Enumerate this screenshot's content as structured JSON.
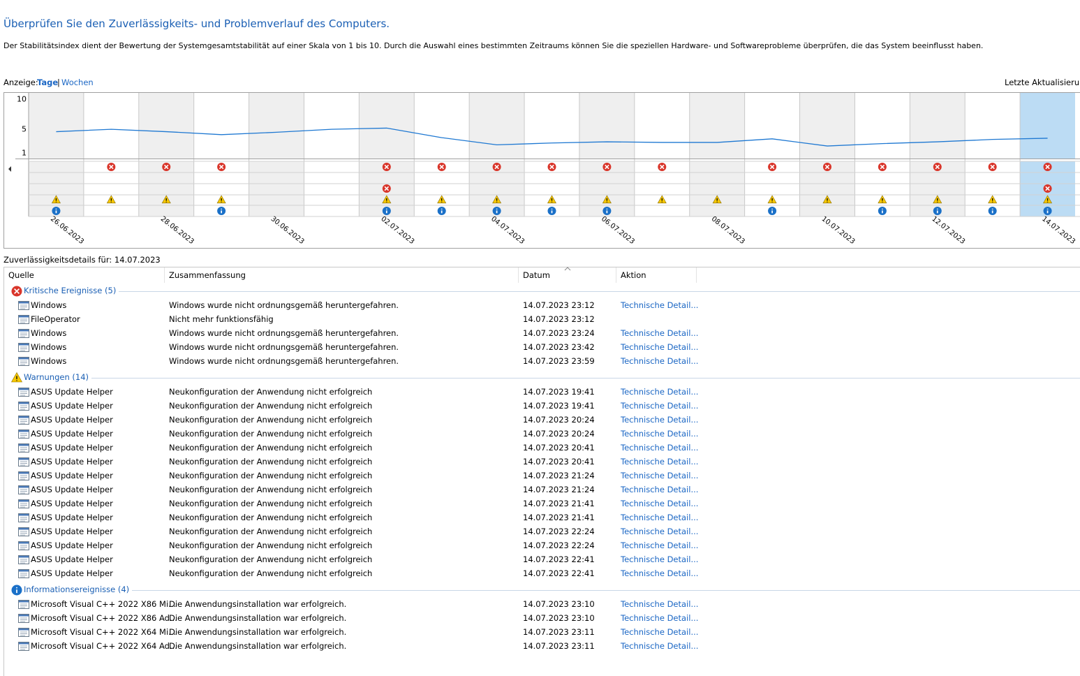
{
  "header": {
    "title": "Überprüfen Sie den Zuverlässigkeits- und Problemverlauf des Computers.",
    "description": "Der Stabilitätsindex dient der Bewertung der Systemgesamtstabilität auf einer Skala von 1 bis 10. Durch die Auswahl eines bestimmten Zeitraums können Sie die speziellen Hardware- und Softwareprobleme überprüfen, die das System beeinflusst haben."
  },
  "view": {
    "label": "Anzeige:",
    "days": "Tage",
    "separator": "|",
    "weeks": "Wochen",
    "last_update": "Letzte Aktualisierung"
  },
  "chart": {
    "type": "line",
    "color": "#1e78d2",
    "dates": [
      "26.06.2023",
      null,
      "28.06.2023",
      null,
      "30.06.2023",
      null,
      "02.07.2023",
      null,
      "04.07.2023",
      null,
      "06.07.2023",
      null,
      "08.07.2023",
      null,
      "10.07.2023",
      null,
      "12.07.2023",
      null,
      "14.07.2023"
    ],
    "stability_index": [
      4.5,
      4.9,
      4.5,
      4.0,
      4.4,
      4.9,
      5.1,
      3.5,
      2.3,
      2.6,
      2.8,
      2.7,
      2.7,
      3.3,
      2.1,
      2.5,
      2.8,
      3.2,
      3.4
    ],
    "ylim": [
      0,
      11
    ],
    "yticks": [
      10,
      5,
      1
    ],
    "event_rows": [
      [
        1,
        2,
        3,
        6,
        7,
        8,
        9,
        10,
        11,
        13,
        14,
        15,
        16,
        17,
        18
      ],
      [],
      [
        6,
        18
      ],
      [
        0,
        1,
        2,
        3,
        6,
        7,
        8,
        9,
        10,
        11,
        12,
        13,
        14,
        15,
        16,
        17,
        18
      ],
      [
        0,
        3,
        6,
        7,
        8,
        9,
        10,
        13,
        15,
        16,
        17,
        18
      ]
    ],
    "selected": 18
  },
  "details": {
    "title": "Zuverlässigkeitsdetails für: 14.07.2023",
    "columns": [
      "Quelle",
      "Zusammenfassung",
      "Datum",
      "Aktion"
    ],
    "groups": [
      {
        "label": "Kritische Ereignisse (5)",
        "rows": [
          [
            "Windows",
            "Windows wurde nicht ordnungsgemäß heruntergefahren.",
            "14.07.2023 23:12",
            "Technische Detail..."
          ],
          [
            "FileOperator",
            "Nicht mehr funktionsfähig",
            "14.07.2023 23:12",
            null
          ],
          [
            "Windows",
            "Windows wurde nicht ordnungsgemäß heruntergefahren.",
            "14.07.2023 23:24",
            "Technische Detail..."
          ],
          [
            "Windows",
            "Windows wurde nicht ordnungsgemäß heruntergefahren.",
            "14.07.2023 23:42",
            "Technische Detail..."
          ],
          [
            "Windows",
            "Windows wurde nicht ordnungsgemäß heruntergefahren.",
            "14.07.2023 23:59",
            "Technische Detail..."
          ]
        ]
      },
      {
        "label": "Warnungen (14)",
        "rows": [
          [
            "ASUS Update Helper",
            "Neukonfiguration der Anwendung nicht erfolgreich",
            "14.07.2023 19:41",
            "Technische Detail..."
          ],
          [
            "ASUS Update Helper",
            "Neukonfiguration der Anwendung nicht erfolgreich",
            "14.07.2023 19:41",
            "Technische Detail..."
          ],
          [
            "ASUS Update Helper",
            "Neukonfiguration der Anwendung nicht erfolgreich",
            "14.07.2023 20:24",
            "Technische Detail..."
          ],
          [
            "ASUS Update Helper",
            "Neukonfiguration der Anwendung nicht erfolgreich",
            "14.07.2023 20:24",
            "Technische Detail..."
          ],
          [
            "ASUS Update Helper",
            "Neukonfiguration der Anwendung nicht erfolgreich",
            "14.07.2023 20:41",
            "Technische Detail..."
          ],
          [
            "ASUS Update Helper",
            "Neukonfiguration der Anwendung nicht erfolgreich",
            "14.07.2023 20:41",
            "Technische Detail..."
          ],
          [
            "ASUS Update Helper",
            "Neukonfiguration der Anwendung nicht erfolgreich",
            "14.07.2023 21:24",
            "Technische Detail..."
          ],
          [
            "ASUS Update Helper",
            "Neukonfiguration der Anwendung nicht erfolgreich",
            "14.07.2023 21:24",
            "Technische Detail..."
          ],
          [
            "ASUS Update Helper",
            "Neukonfiguration der Anwendung nicht erfolgreich",
            "14.07.2023 21:41",
            "Technische Detail..."
          ],
          [
            "ASUS Update Helper",
            "Neukonfiguration der Anwendung nicht erfolgreich",
            "14.07.2023 21:41",
            "Technische Detail..."
          ],
          [
            "ASUS Update Helper",
            "Neukonfiguration der Anwendung nicht erfolgreich",
            "14.07.2023 22:24",
            "Technische Detail..."
          ],
          [
            "ASUS Update Helper",
            "Neukonfiguration der Anwendung nicht erfolgreich",
            "14.07.2023 22:24",
            "Technische Detail..."
          ],
          [
            "ASUS Update Helper",
            "Neukonfiguration der Anwendung nicht erfolgreich",
            "14.07.2023 22:41",
            "Technische Detail..."
          ],
          [
            "ASUS Update Helper",
            "Neukonfiguration der Anwendung nicht erfolgreich",
            "14.07.2023 22:41",
            "Technische Detail..."
          ]
        ]
      },
      {
        "label": "Informationsereignisse (4)",
        "rows": [
          [
            "Microsoft Visual C++ 2022 X86 Mi...",
            "Die Anwendungsinstallation war erfolgreich.",
            "14.07.2023 23:10",
            "Technische Detail..."
          ],
          [
            "Microsoft Visual C++ 2022 X86 Ad...",
            "Die Anwendungsinstallation war erfolgreich.",
            "14.07.2023 23:10",
            "Technische Detail..."
          ],
          [
            "Microsoft Visual C++ 2022 X64 Mi...",
            "Die Anwendungsinstallation war erfolgreich.",
            "14.07.2023 23:11",
            "Technische Detail..."
          ],
          [
            "Microsoft Visual C++ 2022 X64 Ad...",
            "Die Anwendungsinstallation war erfolgreich.",
            "14.07.2023 23:11",
            "Technische Detail..."
          ]
        ]
      }
    ]
  }
}
